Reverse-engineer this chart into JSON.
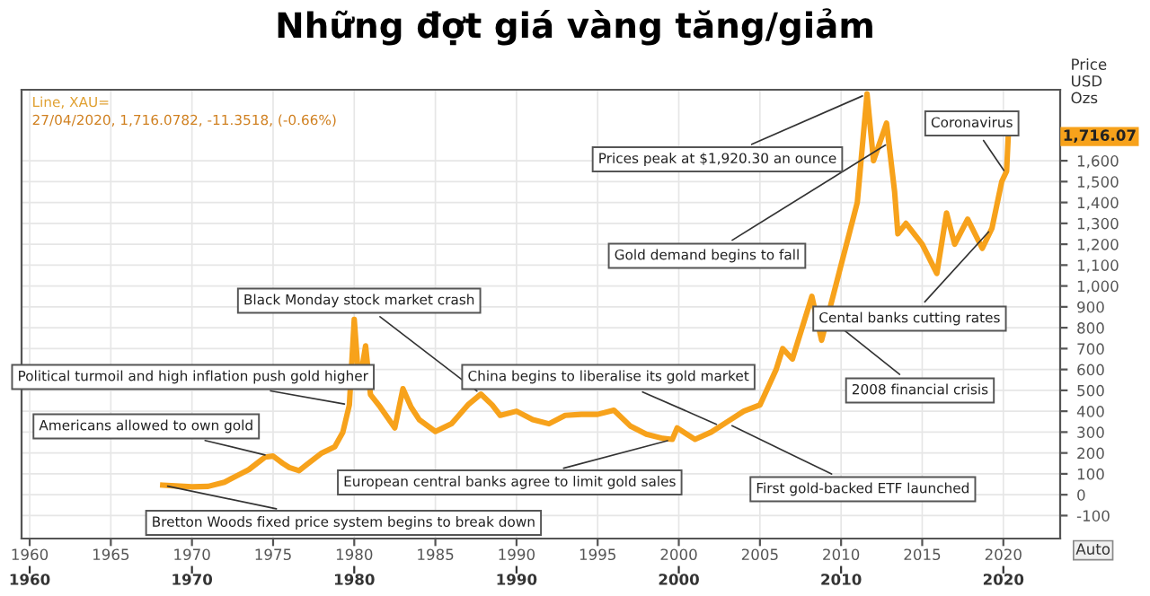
{
  "chart_data": {
    "type": "line",
    "title": "Những đợt giá vàng tăng/giảm",
    "ylabel": "Price\nUSD\nOzs",
    "x": [
      1968.2,
      1969.0,
      1970.0,
      1971.0,
      1972.0,
      1973.0,
      1973.5,
      1974.0,
      1974.5,
      1975.0,
      1975.6,
      1976.0,
      1976.6,
      1977.0,
      1978.0,
      1978.8,
      1979.3,
      1979.7,
      1980.0,
      1980.3,
      1980.7,
      1981.0,
      1981.6,
      1982.5,
      1983.0,
      1983.5,
      1984.0,
      1985.0,
      1986.0,
      1987.0,
      1987.8,
      1988.5,
      1989.0,
      1990.0,
      1991.0,
      1992.0,
      1993.0,
      1994.0,
      1995.0,
      1996.0,
      1997.0,
      1998.0,
      1999.0,
      1999.6,
      1999.9,
      2001.0,
      2002.0,
      2003.0,
      2004.0,
      2005.0,
      2006.0,
      2006.4,
      2007.0,
      2008.2,
      2008.8,
      2009.5,
      2010.0,
      2010.5,
      2011.0,
      2011.6,
      2012.0,
      2012.8,
      2013.3,
      2013.5,
      2014.0,
      2015.0,
      2015.9,
      2016.5,
      2017.0,
      2017.8,
      2018.7,
      2019.3,
      2019.9,
      2020.2,
      2020.3
    ],
    "series": [
      {
        "color": "#f7a21b",
        "values": [
          46,
          42,
          38,
          40,
          60,
          100,
          120,
          150,
          180,
          185,
          150,
          130,
          115,
          140,
          200,
          230,
          300,
          430,
          840,
          520,
          713,
          480,
          420,
          320,
          508,
          420,
          360,
          303,
          340,
          430,
          482,
          430,
          380,
          400,
          360,
          340,
          380,
          385,
          385,
          405,
          330,
          290,
          270,
          265,
          320,
          265,
          300,
          350,
          400,
          430,
          600,
          700,
          650,
          950,
          740,
          950,
          1100,
          1250,
          1400,
          1920,
          1600,
          1780,
          1450,
          1250,
          1300,
          1200,
          1060,
          1350,
          1200,
          1320,
          1180,
          1277,
          1500,
          1550,
          1716
        ]
      }
    ],
    "xlim": [
      1959.5,
      2023.5
    ],
    "ylim": [
      -210,
      1940
    ],
    "xticks": [
      1960,
      1965,
      1970,
      1975,
      1980,
      1985,
      1990,
      1995,
      2000,
      2005,
      2010,
      2015,
      2020
    ],
    "x2lim": [
      1959.5,
      2023.5
    ],
    "x2ticks": [
      1960,
      1970,
      1980,
      1990,
      2000,
      2010,
      2020
    ],
    "yticks": [
      -100,
      0,
      100,
      200,
      300,
      400,
      500,
      600,
      700,
      800,
      900,
      {
        "value": 1000,
        "label": "1,000"
      },
      {
        "value": 1100,
        "label": "1,100"
      },
      {
        "value": 1200,
        "label": "1,200"
      },
      {
        "value": 1300,
        "label": "1,300"
      },
      {
        "value": 1400,
        "label": "1,400"
      },
      {
        "value": 1500,
        "label": "1,500"
      },
      {
        "value": 1600,
        "label": "1,600"
      }
    ],
    "grid": true,
    "marker": "none",
    "line_style": "solid",
    "annotations": [
      "Line, XAU=",
      "27/04/2020, 1,716.0782, -11.3518, (-0.66%)",
      "1,716.07",
      "Auto",
      {
        "text": "Bretton Woods fixed price system begins to break down",
        "x": 1968.2,
        "y": 46
      },
      {
        "text": "Americans allowed to own gold",
        "x": 1974.8,
        "y": 185
      },
      {
        "text": "Political turmoil and high inflation push gold higher",
        "x": 1979.7,
        "y": 430
      },
      {
        "text": "Black Monday stock market crash",
        "x": 1987.8,
        "y": 482
      },
      {
        "text": "China begins to liberalise its gold market",
        "x": 2002.6,
        "y": 328
      },
      {
        "text": "European central banks agree to limit gold sales",
        "x": 1999.6,
        "y": 265
      },
      {
        "text": "First gold-backed ETF launched",
        "x": 2003.0,
        "y": 341
      },
      {
        "text": "2008 financial crisis",
        "x": 2008.7,
        "y": 880
      },
      {
        "text": "Cental banks cutting rates",
        "x": 2019.3,
        "y": 1277
      },
      {
        "text": "Gold demand begins to fall",
        "x": 2013.0,
        "y": 1688
      },
      {
        "text": "Prices peak at $1,920.30 an ounce",
        "x": 2011.6,
        "y": 1920
      },
      {
        "text": "Coronavirus",
        "x": 2020.2,
        "y": 1534
      }
    ]
  }
}
